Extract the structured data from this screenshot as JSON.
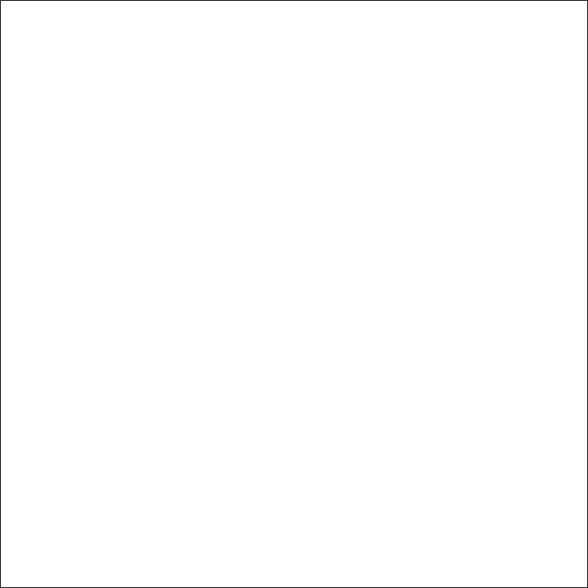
{
  "window": {
    "background_color": "#ffffff",
    "border_color": "#3c3c3c"
  },
  "content": {
    "text": ""
  }
}
